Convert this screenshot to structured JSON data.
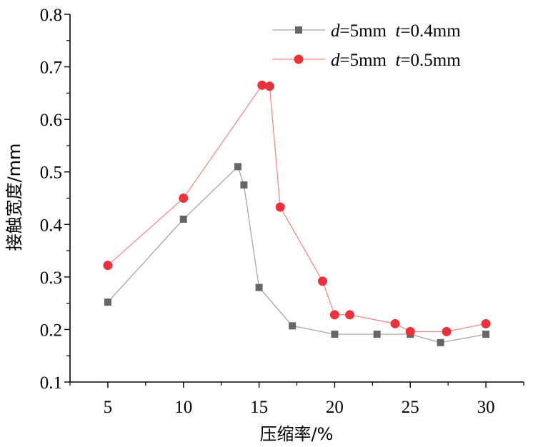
{
  "chart_data": {
    "type": "line",
    "xlabel": "压缩率/%",
    "ylabel": "接触宽度/mm",
    "xlim": [
      2.5,
      32.5
    ],
    "ylim": [
      0.1,
      0.8
    ],
    "xticks": [
      5,
      10,
      15,
      20,
      25,
      30
    ],
    "yticks": [
      0.1,
      0.2,
      0.3,
      0.4,
      0.5,
      0.6,
      0.7,
      0.8
    ],
    "xtick_labels": [
      "5",
      "10",
      "15",
      "20",
      "25",
      "30"
    ],
    "ytick_labels": [
      "0.1",
      "0.2",
      "0.3",
      "0.4",
      "0.5",
      "0.6",
      "0.7",
      "0.8"
    ],
    "legend_position": "top-right",
    "series": [
      {
        "legend": {
          "v1": "d",
          "eq1": "=5mm",
          "v2": "t",
          "eq2": "=0.4mm"
        },
        "marker": "square",
        "marker_color": "#666666",
        "line_color": "#a6a6a6",
        "x": [
          5,
          10,
          13.6,
          14,
          15,
          17.2,
          20,
          22.8,
          25,
          27,
          30
        ],
        "y": [
          0.252,
          0.41,
          0.51,
          0.475,
          0.28,
          0.207,
          0.191,
          0.191,
          0.191,
          0.175,
          0.191
        ]
      },
      {
        "legend": {
          "v1": "d",
          "eq1": "=5mm",
          "v2": "t",
          "eq2": "=0.5mm"
        },
        "marker": "circle",
        "marker_color": "#e8323c",
        "line_color": "#f08a8a",
        "x": [
          5,
          10,
          15.2,
          15.7,
          16.4,
          19.2,
          20,
          21,
          24,
          25,
          27.4,
          30
        ],
        "y": [
          0.322,
          0.45,
          0.665,
          0.663,
          0.433,
          0.292,
          0.228,
          0.228,
          0.211,
          0.196,
          0.196,
          0.211
        ]
      }
    ]
  }
}
